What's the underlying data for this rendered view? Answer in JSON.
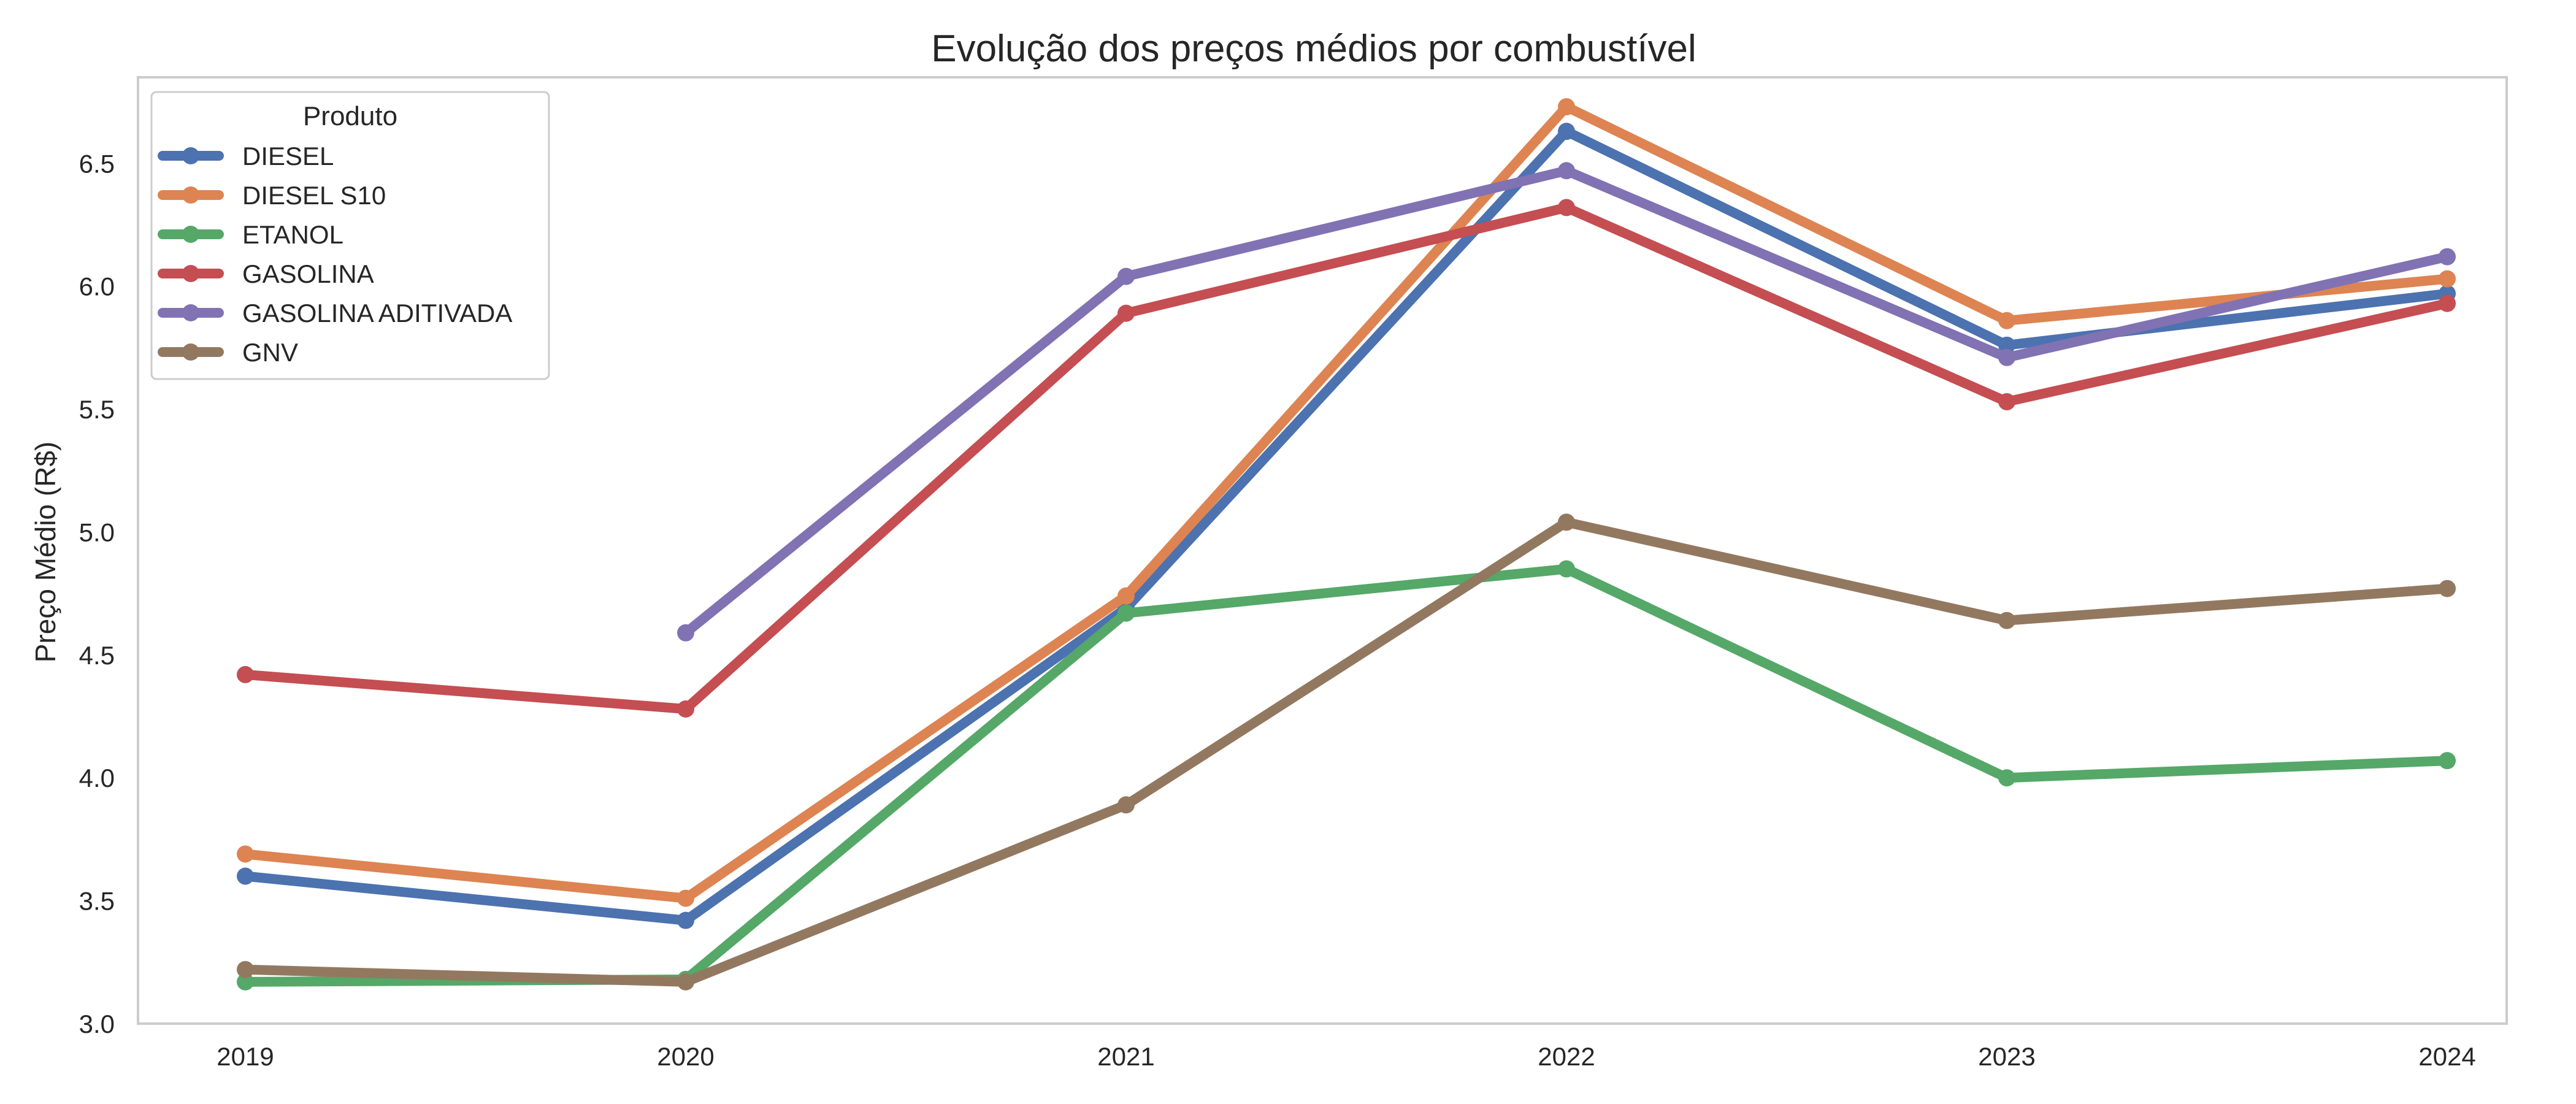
{
  "chart_data": {
    "type": "line",
    "title": "Evolução dos preços médios por combustível",
    "xlabel": "",
    "ylabel": "Preço Médio (R$)",
    "x": [
      "2019",
      "2020",
      "2021",
      "2022",
      "2023",
      "2024"
    ],
    "ylim": [
      3.0,
      6.85
    ],
    "yticks": [
      "3.0",
      "3.5",
      "4.0",
      "4.5",
      "5.0",
      "5.5",
      "6.0",
      "6.5"
    ],
    "grid": false,
    "legend": {
      "title": "Produto",
      "placement": "top-left"
    },
    "series": [
      {
        "name": "DIESEL",
        "color": "#4c72b0",
        "values": [
          3.6,
          3.42,
          4.69,
          6.63,
          5.76,
          5.97
        ]
      },
      {
        "name": "DIESEL S10",
        "color": "#dd8452",
        "values": [
          3.69,
          3.51,
          4.74,
          6.73,
          5.86,
          6.03
        ]
      },
      {
        "name": "ETANOL",
        "color": "#55a868",
        "values": [
          3.17,
          3.18,
          4.67,
          4.85,
          4.0,
          4.07
        ]
      },
      {
        "name": "GASOLINA",
        "color": "#c44e52",
        "values": [
          4.42,
          4.28,
          5.89,
          6.32,
          5.53,
          5.93
        ]
      },
      {
        "name": "GASOLINA ADITIVADA",
        "color": "#8172b3",
        "values": [
          null,
          4.59,
          6.04,
          6.47,
          5.71,
          6.12
        ]
      },
      {
        "name": "GNV",
        "color": "#937860",
        "values": [
          3.22,
          3.17,
          3.89,
          5.04,
          4.64,
          4.77
        ]
      }
    ]
  }
}
